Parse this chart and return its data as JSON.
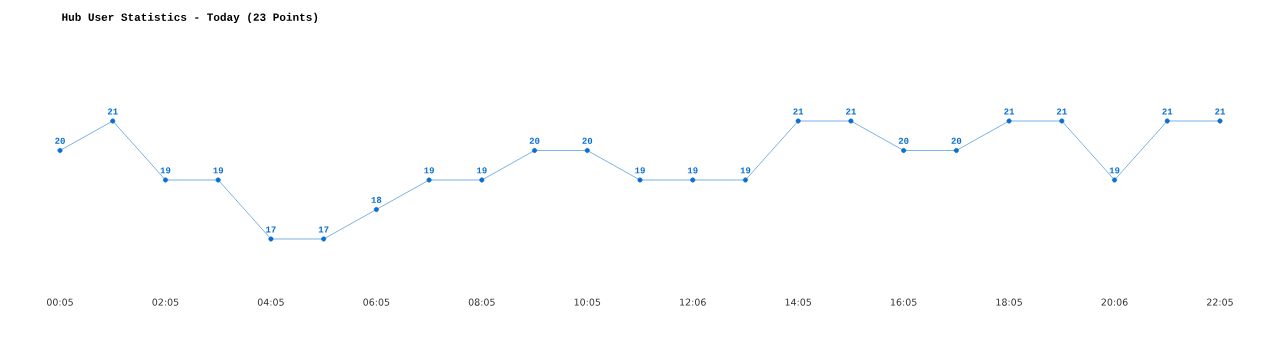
{
  "chart_data": {
    "type": "line",
    "title": "Hub User Statistics - Today (23 Points)",
    "categories": [
      "00:05",
      null,
      "02:05",
      null,
      "04:05",
      null,
      "06:05",
      null,
      "08:05",
      null,
      "10:05",
      null,
      "12:06",
      null,
      "14:05",
      null,
      "16:05",
      null,
      "18:05",
      null,
      "20:06",
      null,
      "22:05"
    ],
    "values": [
      20,
      21,
      19,
      19,
      17,
      17,
      18,
      19,
      19,
      20,
      20,
      19,
      19,
      19,
      21,
      21,
      20,
      20,
      21,
      21,
      19,
      21,
      21
    ],
    "color": "#0a6fd0",
    "marker": "circle",
    "data_labels": true,
    "grid": false
  }
}
